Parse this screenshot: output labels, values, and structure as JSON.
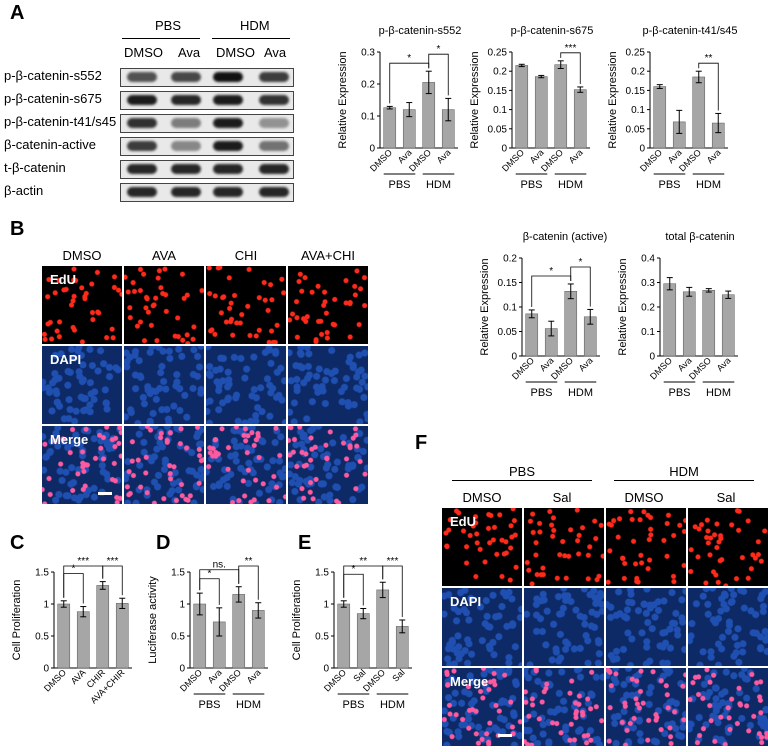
{
  "panels": {
    "A": {
      "letter": "A",
      "groups": [
        "PBS",
        "HDM"
      ],
      "lanes": [
        "DMSO",
        "Ava",
        "DMSO",
        "Ava"
      ],
      "rows": [
        {
          "label": "p-β-catenin-s552",
          "intensity": [
            0.7,
            0.75,
            1.0,
            0.8
          ]
        },
        {
          "label": "p-β-catenin-s675",
          "intensity": [
            0.95,
            0.9,
            0.95,
            0.85
          ]
        },
        {
          "label": "p-β-catenin-t41/s45",
          "intensity": [
            0.85,
            0.5,
            0.95,
            0.4
          ]
        },
        {
          "label": "β-catenin-active",
          "intensity": [
            0.8,
            0.45,
            0.95,
            0.55
          ]
        },
        {
          "label": "t-β-catenin",
          "intensity": [
            0.9,
            0.9,
            0.9,
            0.9
          ]
        },
        {
          "label": "β-actin",
          "intensity": [
            0.9,
            0.9,
            0.9,
            0.9
          ]
        }
      ]
    },
    "B": {
      "letter": "B",
      "columns": [
        "DMSO",
        "AVA",
        "CHI",
        "AVA+CHI"
      ],
      "rows": [
        "EdU",
        "DAPI",
        "Merge"
      ]
    },
    "C": {
      "letter": "C"
    },
    "D": {
      "letter": "D"
    },
    "E": {
      "letter": "E"
    },
    "F": {
      "letter": "F",
      "groups": [
        "PBS",
        "HDM"
      ],
      "columns": [
        "DMSO",
        "Sal",
        "DMSO",
        "Sal"
      ],
      "rows": [
        "EdU",
        "DAPI",
        "Merge"
      ]
    }
  },
  "colors": {
    "bar": "#a6a6a6",
    "edu": "#ff2a1a",
    "dapi": "#1f4fb0",
    "merge": "#ff5aa0"
  },
  "chart_data": [
    {
      "id": "a1",
      "type": "bar",
      "title": "p-β-catenin-s552",
      "ylabel": "Relative Expression",
      "ylim": [
        0,
        0.3
      ],
      "yticks": [
        0.0,
        0.1,
        0.2,
        0.3
      ],
      "categories": [
        "DMSO",
        "Ava",
        "DMSO",
        "Ava"
      ],
      "values": [
        0.126,
        0.12,
        0.205,
        0.12
      ],
      "errors": [
        0.004,
        0.022,
        0.035,
        0.035
      ],
      "group_labels": [
        "PBS",
        "HDM"
      ],
      "significance": [
        {
          "from": 0,
          "to": 2,
          "label": "*"
        },
        {
          "from": 2,
          "to": 3,
          "label": "*"
        }
      ]
    },
    {
      "id": "a2",
      "type": "bar",
      "title": "p-β-catenin-s675",
      "ylabel": "Relative Expression",
      "ylim": [
        0,
        0.25
      ],
      "yticks": [
        0.0,
        0.05,
        0.1,
        0.15,
        0.2,
        0.25
      ],
      "categories": [
        "DMSO",
        "Ava",
        "DMSO",
        "Ava"
      ],
      "values": [
        0.215,
        0.186,
        0.217,
        0.152
      ],
      "errors": [
        0.003,
        0.003,
        0.01,
        0.007
      ],
      "group_labels": [
        "PBS",
        "HDM"
      ],
      "significance": [
        {
          "from": 2,
          "to": 3,
          "label": "***"
        }
      ]
    },
    {
      "id": "a3",
      "type": "bar",
      "title": "p-β-catenin-t41/s45",
      "ylabel": "Relative Expression",
      "ylim": [
        0,
        0.25
      ],
      "yticks": [
        0.0,
        0.05,
        0.1,
        0.15,
        0.2,
        0.25
      ],
      "categories": [
        "DMSO",
        "Ava",
        "DMSO",
        "Ava"
      ],
      "values": [
        0.16,
        0.068,
        0.185,
        0.065
      ],
      "errors": [
        0.005,
        0.03,
        0.015,
        0.025
      ],
      "group_labels": [
        "PBS",
        "HDM"
      ],
      "significance": [
        {
          "from": 2,
          "to": 3,
          "label": "**"
        }
      ]
    },
    {
      "id": "b1",
      "type": "bar",
      "title": "β-catenin (active)",
      "ylabel": "Relative Expression",
      "ylim": [
        0,
        0.2
      ],
      "yticks": [
        0.0,
        0.05,
        0.1,
        0.15,
        0.2
      ],
      "categories": [
        "DMSO",
        "Ava",
        "DMSO",
        "Ava"
      ],
      "values": [
        0.086,
        0.056,
        0.132,
        0.08
      ],
      "errors": [
        0.008,
        0.015,
        0.015,
        0.015
      ],
      "group_labels": [
        "PBS",
        "HDM"
      ],
      "significance": [
        {
          "from": 0,
          "to": 2,
          "label": "*"
        },
        {
          "from": 2,
          "to": 3,
          "label": "*"
        }
      ]
    },
    {
      "id": "b2",
      "type": "bar",
      "title": "total β-catenin",
      "ylabel": "Relative Expression",
      "ylim": [
        0,
        0.4
      ],
      "yticks": [
        0.0,
        0.1,
        0.2,
        0.3,
        0.4
      ],
      "categories": [
        "DMSO",
        "Ava",
        "DMSO",
        "Ava"
      ],
      "values": [
        0.295,
        0.262,
        0.268,
        0.25
      ],
      "errors": [
        0.025,
        0.018,
        0.007,
        0.015
      ],
      "group_labels": [
        "PBS",
        "HDM"
      ],
      "significance": []
    },
    {
      "id": "c",
      "type": "bar",
      "title": "",
      "ylabel": "Cell Proliferation",
      "ylim": [
        0,
        1.5
      ],
      "yticks": [
        0.0,
        0.5,
        1.0,
        1.5
      ],
      "categories": [
        "DMSO",
        "AVA",
        "CHIR",
        "AVA+CHIR"
      ],
      "values": [
        1.0,
        0.88,
        1.29,
        1.01
      ],
      "errors": [
        0.05,
        0.08,
        0.06,
        0.08
      ],
      "group_labels": [],
      "significance": [
        {
          "from": 0,
          "to": 1,
          "label": "*"
        },
        {
          "from": 0,
          "to": 2,
          "label": "***"
        },
        {
          "from": 2,
          "to": 3,
          "label": "***"
        }
      ]
    },
    {
      "id": "d",
      "type": "bar",
      "title": "",
      "ylabel": "Luciferase activity",
      "ylim": [
        0,
        1.5
      ],
      "yticks": [
        0.0,
        0.5,
        1.0,
        1.5
      ],
      "categories": [
        "DMSO",
        "Ava",
        "DMSO",
        "Ava"
      ],
      "values": [
        1.0,
        0.72,
        1.15,
        0.9
      ],
      "errors": [
        0.17,
        0.22,
        0.12,
        0.12
      ],
      "group_labels": [
        "PBS",
        "HDM"
      ],
      "significance": [
        {
          "from": 0,
          "to": 1,
          "label": "*"
        },
        {
          "from": 0,
          "to": 2,
          "label": "ns."
        },
        {
          "from": 2,
          "to": 3,
          "label": "**"
        }
      ]
    },
    {
      "id": "e",
      "type": "bar",
      "title": "",
      "ylabel": "Cell Proliferation",
      "ylim": [
        0,
        1.5
      ],
      "yticks": [
        0,
        0.5,
        1,
        1.5
      ],
      "categories": [
        "DMSO",
        "Sal",
        "DMSO",
        "Sal"
      ],
      "values": [
        1.0,
        0.85,
        1.22,
        0.65
      ],
      "errors": [
        0.05,
        0.08,
        0.12,
        0.1
      ],
      "group_labels": [
        "PBS",
        "HDM"
      ],
      "significance": [
        {
          "from": 0,
          "to": 1,
          "label": "*"
        },
        {
          "from": 0,
          "to": 2,
          "label": "**"
        },
        {
          "from": 2,
          "to": 3,
          "label": "***"
        }
      ]
    }
  ]
}
